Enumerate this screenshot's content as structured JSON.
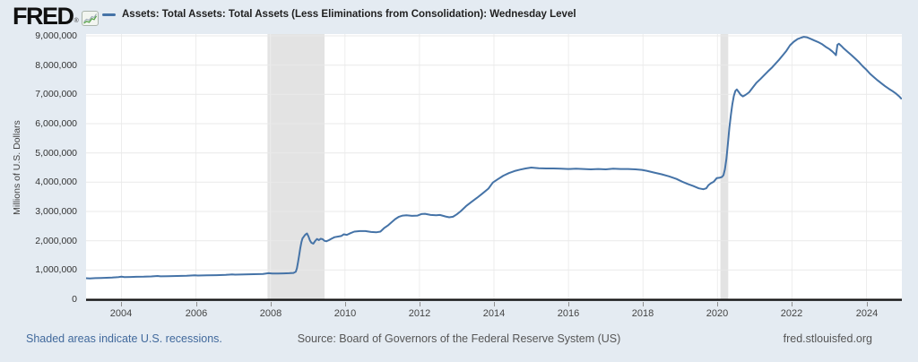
{
  "header": {
    "logo_text": "FRED",
    "registered_mark": "®",
    "legend_label": "Assets: Total Assets: Total Assets (Less Eliminations from Consolidation): Wednesday Level",
    "legend_color": "#4573a7"
  },
  "footer": {
    "recession_note": "Shaded areas indicate U.S. recessions.",
    "source": "Source: Board of Governors of the Federal Reserve System (US)",
    "site": "fred.stlouisfed.org"
  },
  "colors": {
    "page_bg": "#e4ebf2",
    "plot_bg": "#ffffff",
    "recession_band": "#e3e3e3",
    "grid_horizontal": "#e9e9e9",
    "grid_vertical": "#ededed",
    "line": "#4573a7",
    "axis": "#161616",
    "link": "#41699c",
    "logo_icon_green": "#57a34a"
  },
  "chart_data": {
    "type": "line",
    "title": "Assets: Total Assets: Total Assets (Less Eliminations from Consolidation): Wednesday Level",
    "xlabel": "",
    "ylabel": "Millions of U.S. Dollars",
    "x_range": [
      2003.05,
      2024.95
    ],
    "y_range": [
      0,
      9000000
    ],
    "grid": true,
    "legend_position": "top",
    "y_ticks": [
      {
        "v": 0,
        "label": "0"
      },
      {
        "v": 1000000,
        "label": "1,000,000"
      },
      {
        "v": 2000000,
        "label": "2,000,000"
      },
      {
        "v": 3000000,
        "label": "3,000,000"
      },
      {
        "v": 4000000,
        "label": "4,000,000"
      },
      {
        "v": 5000000,
        "label": "5,000,000"
      },
      {
        "v": 6000000,
        "label": "6,000,000"
      },
      {
        "v": 7000000,
        "label": "7,000,000"
      },
      {
        "v": 8000000,
        "label": "8,000,000"
      },
      {
        "v": 9000000,
        "label": "9,000,000"
      }
    ],
    "x_ticks": [
      {
        "v": 2004,
        "label": "2004"
      },
      {
        "v": 2006,
        "label": "2006"
      },
      {
        "v": 2008,
        "label": "2008"
      },
      {
        "v": 2010,
        "label": "2010"
      },
      {
        "v": 2012,
        "label": "2012"
      },
      {
        "v": 2014,
        "label": "2014"
      },
      {
        "v": 2016,
        "label": "2016"
      },
      {
        "v": 2018,
        "label": "2018"
      },
      {
        "v": 2020,
        "label": "2020"
      },
      {
        "v": 2022,
        "label": "2022"
      },
      {
        "v": 2024,
        "label": "2024"
      }
    ],
    "recession_bands": [
      [
        2007.92,
        2009.45
      ],
      [
        2020.08,
        2020.29
      ]
    ],
    "series": [
      {
        "name": "Assets: Total Assets: Total Assets (Less Eliminations from Consolidation): Wednesday Level",
        "units": "Millions of U.S. Dollars",
        "color": "#4573a7",
        "points": [
          [
            2003.05,
            720000
          ],
          [
            2003.15,
            714000
          ],
          [
            2003.3,
            722000
          ],
          [
            2003.45,
            730000
          ],
          [
            2003.6,
            736000
          ],
          [
            2003.75,
            742000
          ],
          [
            2003.92,
            758000
          ],
          [
            2004.0,
            770000
          ],
          [
            2004.08,
            760000
          ],
          [
            2004.25,
            762000
          ],
          [
            2004.4,
            768000
          ],
          [
            2004.6,
            772000
          ],
          [
            2004.8,
            780000
          ],
          [
            2004.97,
            797000
          ],
          [
            2005.05,
            785000
          ],
          [
            2005.25,
            790000
          ],
          [
            2005.5,
            796000
          ],
          [
            2005.75,
            802000
          ],
          [
            2005.97,
            820000
          ],
          [
            2006.05,
            812000
          ],
          [
            2006.3,
            818000
          ],
          [
            2006.55,
            824000
          ],
          [
            2006.8,
            832000
          ],
          [
            2006.97,
            852000
          ],
          [
            2007.05,
            842000
          ],
          [
            2007.3,
            848000
          ],
          [
            2007.55,
            856000
          ],
          [
            2007.8,
            862000
          ],
          [
            2007.95,
            891000
          ],
          [
            2008.05,
            880000
          ],
          [
            2008.2,
            878000
          ],
          [
            2008.35,
            884000
          ],
          [
            2008.5,
            892000
          ],
          [
            2008.62,
            900000
          ],
          [
            2008.68,
            940000
          ],
          [
            2008.71,
            1060000
          ],
          [
            2008.74,
            1260000
          ],
          [
            2008.77,
            1500000
          ],
          [
            2008.8,
            1740000
          ],
          [
            2008.83,
            1950000
          ],
          [
            2008.86,
            2080000
          ],
          [
            2008.9,
            2150000
          ],
          [
            2008.94,
            2210000
          ],
          [
            2008.98,
            2250000
          ],
          [
            2009.02,
            2150000
          ],
          [
            2009.06,
            2010000
          ],
          [
            2009.1,
            1930000
          ],
          [
            2009.15,
            1900000
          ],
          [
            2009.2,
            1990000
          ],
          [
            2009.25,
            2060000
          ],
          [
            2009.3,
            2020000
          ],
          [
            2009.35,
            2070000
          ],
          [
            2009.4,
            2050000
          ],
          [
            2009.45,
            2000000
          ],
          [
            2009.5,
            1980000
          ],
          [
            2009.57,
            2020000
          ],
          [
            2009.64,
            2070000
          ],
          [
            2009.72,
            2120000
          ],
          [
            2009.8,
            2140000
          ],
          [
            2009.9,
            2160000
          ],
          [
            2009.97,
            2220000
          ],
          [
            2010.05,
            2200000
          ],
          [
            2010.15,
            2260000
          ],
          [
            2010.25,
            2310000
          ],
          [
            2010.4,
            2330000
          ],
          [
            2010.55,
            2330000
          ],
          [
            2010.7,
            2300000
          ],
          [
            2010.85,
            2290000
          ],
          [
            2010.95,
            2310000
          ],
          [
            2011.05,
            2430000
          ],
          [
            2011.15,
            2520000
          ],
          [
            2011.25,
            2630000
          ],
          [
            2011.35,
            2740000
          ],
          [
            2011.45,
            2820000
          ],
          [
            2011.55,
            2860000
          ],
          [
            2011.65,
            2870000
          ],
          [
            2011.8,
            2850000
          ],
          [
            2011.95,
            2860000
          ],
          [
            2012.05,
            2910000
          ],
          [
            2012.15,
            2920000
          ],
          [
            2012.3,
            2880000
          ],
          [
            2012.45,
            2870000
          ],
          [
            2012.55,
            2880000
          ],
          [
            2012.7,
            2830000
          ],
          [
            2012.8,
            2800000
          ],
          [
            2012.9,
            2820000
          ],
          [
            2013.0,
            2900000
          ],
          [
            2013.1,
            3000000
          ],
          [
            2013.25,
            3180000
          ],
          [
            2013.4,
            3330000
          ],
          [
            2013.55,
            3470000
          ],
          [
            2013.7,
            3620000
          ],
          [
            2013.85,
            3780000
          ],
          [
            2013.97,
            3990000
          ],
          [
            2014.1,
            4100000
          ],
          [
            2014.25,
            4220000
          ],
          [
            2014.4,
            4310000
          ],
          [
            2014.55,
            4380000
          ],
          [
            2014.7,
            4430000
          ],
          [
            2014.85,
            4470000
          ],
          [
            2015.0,
            4500000
          ],
          [
            2015.2,
            4480000
          ],
          [
            2015.4,
            4470000
          ],
          [
            2015.6,
            4470000
          ],
          [
            2015.8,
            4460000
          ],
          [
            2016.0,
            4450000
          ],
          [
            2016.2,
            4460000
          ],
          [
            2016.4,
            4450000
          ],
          [
            2016.6,
            4440000
          ],
          [
            2016.8,
            4450000
          ],
          [
            2017.0,
            4440000
          ],
          [
            2017.2,
            4460000
          ],
          [
            2017.4,
            4450000
          ],
          [
            2017.6,
            4450000
          ],
          [
            2017.8,
            4440000
          ],
          [
            2017.97,
            4420000
          ],
          [
            2018.1,
            4390000
          ],
          [
            2018.3,
            4330000
          ],
          [
            2018.5,
            4270000
          ],
          [
            2018.7,
            4200000
          ],
          [
            2018.9,
            4110000
          ],
          [
            2019.05,
            4020000
          ],
          [
            2019.2,
            3940000
          ],
          [
            2019.35,
            3870000
          ],
          [
            2019.5,
            3790000
          ],
          [
            2019.62,
            3760000
          ],
          [
            2019.7,
            3790000
          ],
          [
            2019.76,
            3900000
          ],
          [
            2019.82,
            3960000
          ],
          [
            2019.9,
            4020000
          ],
          [
            2019.98,
            4140000
          ],
          [
            2020.05,
            4150000
          ],
          [
            2020.12,
            4180000
          ],
          [
            2020.16,
            4240000
          ],
          [
            2020.2,
            4440000
          ],
          [
            2020.24,
            4800000
          ],
          [
            2020.28,
            5300000
          ],
          [
            2020.32,
            5860000
          ],
          [
            2020.36,
            6300000
          ],
          [
            2020.4,
            6660000
          ],
          [
            2020.44,
            6950000
          ],
          [
            2020.48,
            7120000
          ],
          [
            2020.52,
            7170000
          ],
          [
            2020.56,
            7100000
          ],
          [
            2020.62,
            6990000
          ],
          [
            2020.68,
            6930000
          ],
          [
            2020.75,
            6980000
          ],
          [
            2020.85,
            7070000
          ],
          [
            2020.95,
            7240000
          ],
          [
            2021.05,
            7400000
          ],
          [
            2021.15,
            7520000
          ],
          [
            2021.25,
            7650000
          ],
          [
            2021.35,
            7780000
          ],
          [
            2021.45,
            7900000
          ],
          [
            2021.55,
            8040000
          ],
          [
            2021.65,
            8180000
          ],
          [
            2021.75,
            8330000
          ],
          [
            2021.85,
            8490000
          ],
          [
            2021.95,
            8680000
          ],
          [
            2022.05,
            8800000
          ],
          [
            2022.15,
            8890000
          ],
          [
            2022.25,
            8940000
          ],
          [
            2022.32,
            8965000
          ],
          [
            2022.4,
            8950000
          ],
          [
            2022.5,
            8900000
          ],
          [
            2022.6,
            8840000
          ],
          [
            2022.7,
            8790000
          ],
          [
            2022.8,
            8720000
          ],
          [
            2022.9,
            8630000
          ],
          [
            2023.0,
            8550000
          ],
          [
            2023.08,
            8470000
          ],
          [
            2023.14,
            8400000
          ],
          [
            2023.18,
            8340000
          ],
          [
            2023.22,
            8690000
          ],
          [
            2023.26,
            8730000
          ],
          [
            2023.32,
            8660000
          ],
          [
            2023.4,
            8560000
          ],
          [
            2023.5,
            8450000
          ],
          [
            2023.6,
            8340000
          ],
          [
            2023.7,
            8220000
          ],
          [
            2023.8,
            8100000
          ],
          [
            2023.9,
            7960000
          ],
          [
            2024.0,
            7840000
          ],
          [
            2024.1,
            7700000
          ],
          [
            2024.2,
            7590000
          ],
          [
            2024.3,
            7480000
          ],
          [
            2024.4,
            7380000
          ],
          [
            2024.5,
            7280000
          ],
          [
            2024.6,
            7190000
          ],
          [
            2024.7,
            7110000
          ],
          [
            2024.8,
            7020000
          ],
          [
            2024.88,
            6930000
          ],
          [
            2024.93,
            6860000
          ]
        ]
      }
    ]
  }
}
